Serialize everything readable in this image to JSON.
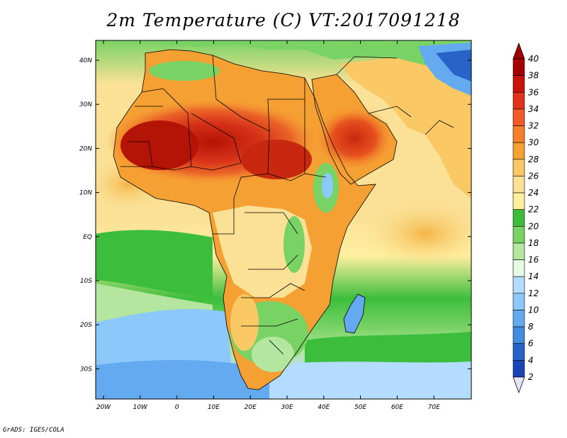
{
  "title": "2m Temperature (C) VT:2017091218",
  "credit": "GrADS: IGES/COLA",
  "map": {
    "variable": "2m Temperature",
    "units": "C",
    "valid_time": "2017091218",
    "lat_labels": [
      "40N",
      "30N",
      "20N",
      "10N",
      "EQ",
      "10S",
      "20S",
      "30S"
    ],
    "lon_labels": [
      "20W",
      "10W",
      "0",
      "10E",
      "20E",
      "30E",
      "40E",
      "50E",
      "60E",
      "70E"
    ]
  },
  "colorbar": {
    "levels": [
      "40",
      "38",
      "36",
      "34",
      "32",
      "30",
      "28",
      "26",
      "24",
      "22",
      "20",
      "18",
      "16",
      "14",
      "12",
      "10",
      "8",
      "6",
      "4",
      "2"
    ],
    "colors": [
      "#a50000",
      "#c8140a",
      "#e1321e",
      "#f05a28",
      "#f58228",
      "#f5a032",
      "#fac864",
      "#fae196",
      "#fff0a0",
      "#3cbe3c",
      "#78d264",
      "#b4e6a0",
      "#e6fae6",
      "#b4dcff",
      "#8cc8fa",
      "#64aaf0",
      "#418cdc",
      "#2864c8",
      "#1946b4",
      "#0a1e8c"
    ],
    "top_color": "#a50000",
    "bottom_color": "#e6e6fa"
  }
}
